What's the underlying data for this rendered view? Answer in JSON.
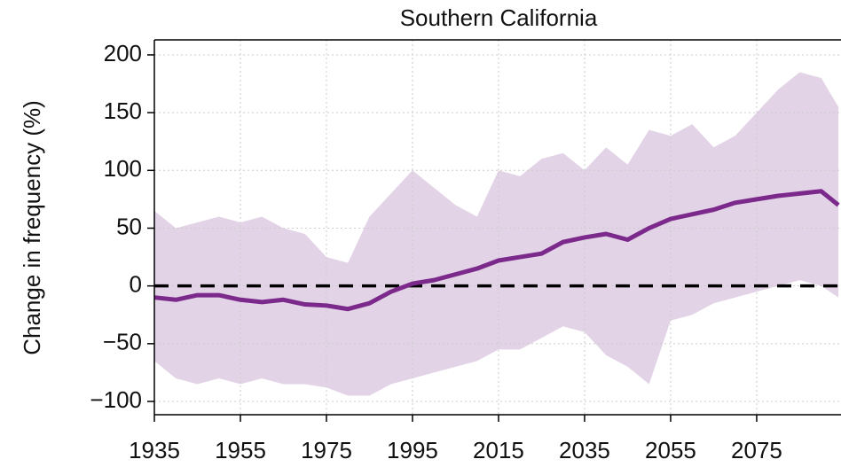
{
  "chart_data": {
    "type": "line",
    "title": "Southern California",
    "y_label": "Change in frequency (%)",
    "x": [
      1935,
      1940,
      1945,
      1950,
      1955,
      1960,
      1965,
      1970,
      1975,
      1980,
      1985,
      1990,
      1995,
      2000,
      2005,
      2010,
      2015,
      2020,
      2025,
      2030,
      2035,
      2040,
      2045,
      2050,
      2055,
      2060,
      2065,
      2070,
      2075,
      2080,
      2085,
      2090,
      2094
    ],
    "values": [
      -10,
      -12,
      -8,
      -8,
      -12,
      -14,
      -12,
      -16,
      -17,
      -20,
      -15,
      -5,
      2,
      5,
      10,
      15,
      22,
      25,
      28,
      38,
      42,
      45,
      40,
      50,
      58,
      62,
      66,
      72,
      75,
      78,
      80,
      82,
      70
    ],
    "band_upper": [
      65,
      50,
      55,
      60,
      55,
      60,
      50,
      45,
      25,
      20,
      60,
      80,
      100,
      85,
      70,
      60,
      100,
      95,
      110,
      115,
      100,
      120,
      105,
      135,
      130,
      140,
      120,
      130,
      150,
      170,
      185,
      180,
      155
    ],
    "band_lower": [
      -65,
      -80,
      -85,
      -80,
      -85,
      -80,
      -85,
      -85,
      -88,
      -95,
      -95,
      -85,
      -80,
      -75,
      -70,
      -65,
      -55,
      -55,
      -45,
      -35,
      -40,
      -60,
      -70,
      -85,
      -30,
      -25,
      -15,
      -10,
      -5,
      0,
      5,
      0,
      -10
    ],
    "color": "#7b2a8c",
    "band_color": "#e3d3e6",
    "reference_line": 0,
    "xlim": [
      1935,
      2094.6
    ],
    "ylim": [
      -111.5,
      213
    ],
    "xticks": [
      1935,
      1955,
      1975,
      1995,
      2015,
      2035,
      2055,
      2075
    ],
    "yticks": [
      {
        "value": -100,
        "label": "−100"
      },
      {
        "value": -50,
        "label": "−50"
      },
      0,
      50,
      100,
      150,
      200
    ],
    "grid": true
  }
}
